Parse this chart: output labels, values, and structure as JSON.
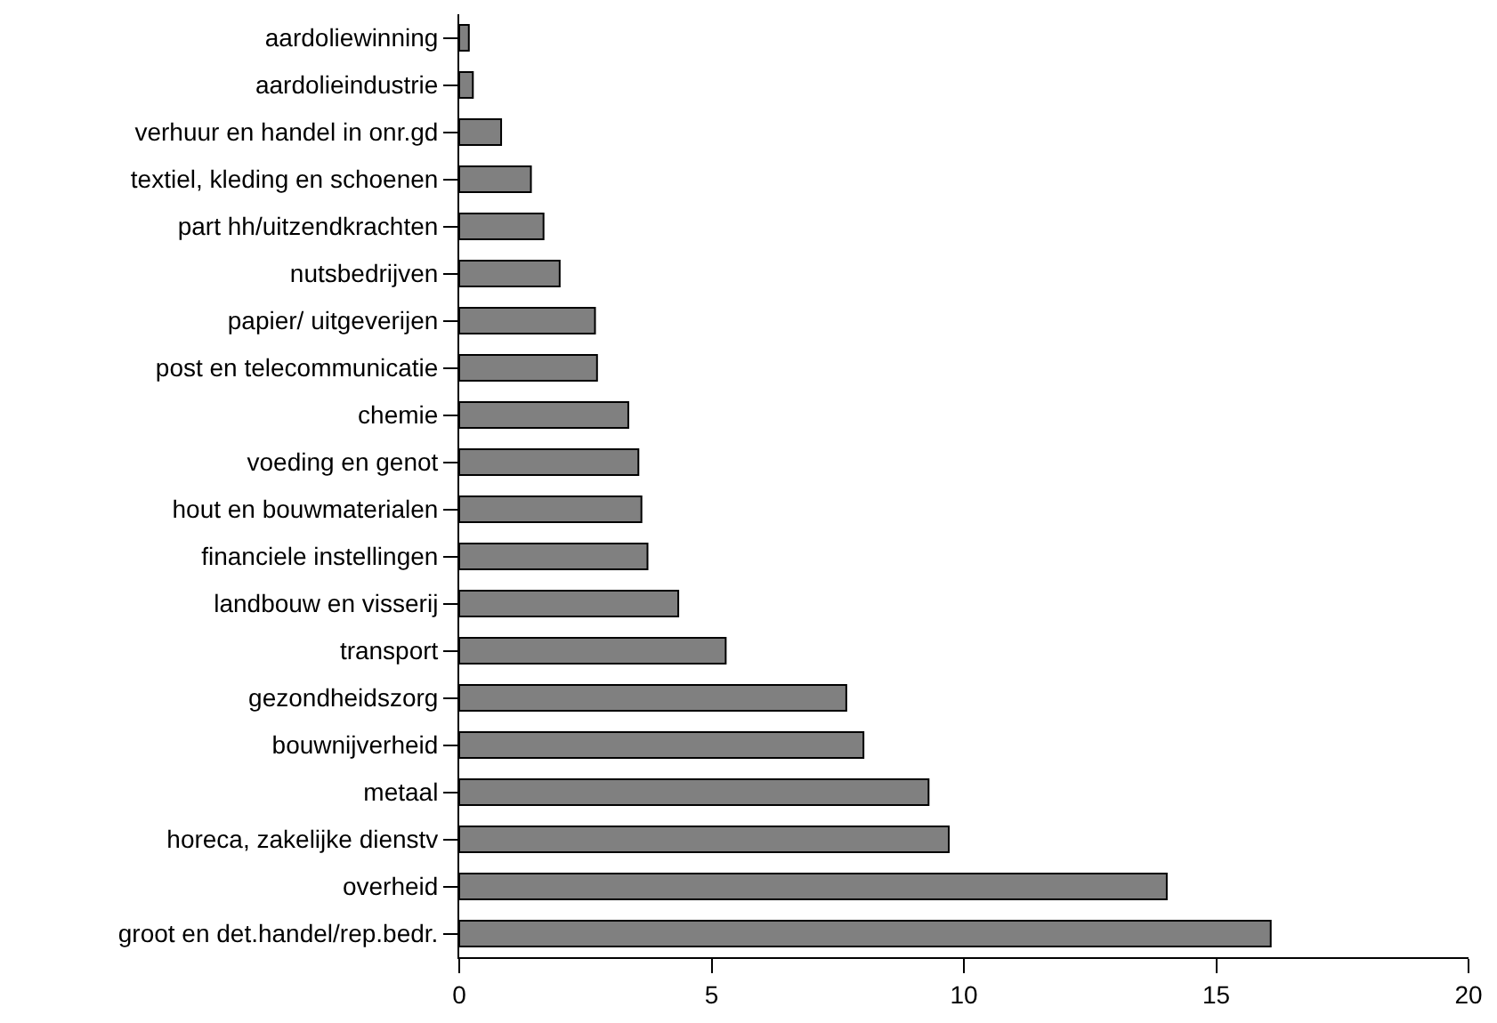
{
  "chart_data": {
    "type": "bar",
    "orientation": "horizontal",
    "categories": [
      "aardoliewinning",
      "aardolieindustrie",
      "verhuur en handel in onr.gd",
      "textiel, kleding en schoenen",
      "part hh/uitzendkrachten",
      "nutsbedrijven",
      "papier/ uitgeverijen",
      "post en telecommunicatie",
      "chemie",
      "voeding en genot",
      "hout en bouwmaterialen",
      "financiele instellingen",
      "landbouw en visserij",
      "transport",
      "gezondheidszorg",
      "bouwnijverheid",
      "metaal",
      "horeca, zakelijke dienstv",
      "overheid",
      "groot en det.handel/rep.bedr."
    ],
    "values": [
      0.19,
      0.27,
      0.83,
      1.42,
      1.67,
      1.99,
      2.69,
      2.73,
      3.35,
      3.55,
      3.61,
      3.73,
      4.34,
      5.28,
      7.67,
      8.01,
      9.3,
      9.7,
      14.02,
      16.08
    ],
    "color": "#808080",
    "xlim": [
      0,
      20
    ],
    "xticks": [
      0,
      5,
      10,
      15,
      20
    ]
  }
}
